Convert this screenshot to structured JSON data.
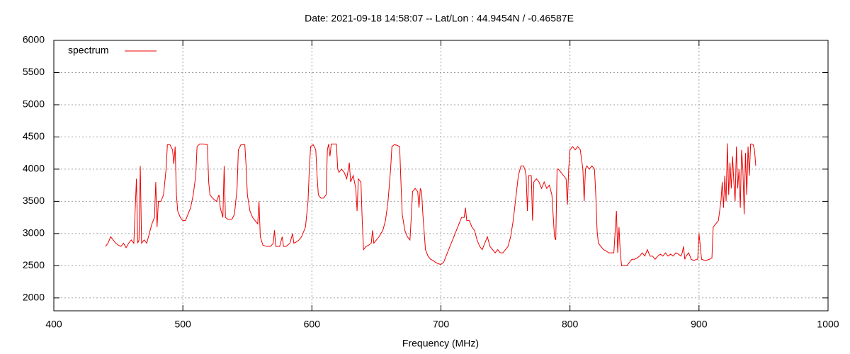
{
  "chart_data": {
    "type": "line",
    "title": "Date: 2021-09-18 14:58:07  --  Lat/Lon : 44.9454N / -0.46587E",
    "x_label": "Frequency (MHz)",
    "xlim": [
      400,
      1000
    ],
    "xticks": [
      400,
      500,
      600,
      700,
      800,
      900,
      1000
    ],
    "ylim": [
      1800,
      6000
    ],
    "yticks": [
      2000,
      2500,
      3000,
      3500,
      4000,
      4500,
      5000,
      5500,
      6000
    ],
    "grid": true,
    "legend": "top-left",
    "x": [
      440,
      442,
      444,
      446,
      448,
      450,
      452,
      454,
      456,
      458,
      460,
      462,
      464,
      465,
      466,
      467,
      468,
      470,
      472,
      474,
      476,
      478,
      479,
      480,
      481,
      483,
      485,
      487,
      488,
      490,
      492,
      493,
      494,
      495,
      496,
      498,
      500,
      502,
      504,
      506,
      508,
      510,
      511,
      513,
      516,
      519,
      520,
      521,
      523,
      526,
      528,
      529,
      531,
      532,
      533,
      535,
      538,
      540,
      542,
      543,
      545,
      548,
      549,
      550,
      552,
      554,
      556,
      558,
      559,
      560,
      562,
      565,
      568,
      570,
      571,
      572,
      575,
      577,
      578,
      580,
      583,
      585,
      586,
      588,
      590,
      592,
      595,
      597,
      598,
      599,
      601,
      603,
      604,
      605,
      607,
      609,
      611,
      612,
      613,
      614,
      615,
      617,
      619,
      620,
      621,
      623,
      625,
      627,
      629,
      630,
      632,
      634,
      635,
      636,
      638,
      639,
      640,
      642,
      644,
      646,
      647,
      648,
      650,
      652,
      655,
      657,
      659,
      661,
      662,
      664,
      666,
      668,
      669,
      670,
      672,
      674,
      676,
      677,
      678,
      680,
      682,
      683,
      684,
      685,
      686,
      688,
      690,
      692,
      694,
      696,
      698,
      700,
      702,
      704,
      706,
      708,
      710,
      712,
      714,
      716,
      718,
      719,
      720,
      722,
      724,
      726,
      728,
      730,
      732,
      734,
      736,
      738,
      740,
      742,
      744,
      746,
      748,
      750,
      752,
      754,
      756,
      758,
      760,
      762,
      764,
      765,
      766,
      767,
      768,
      769,
      770,
      771,
      772,
      774,
      776,
      778,
      780,
      782,
      784,
      786,
      788,
      789,
      790,
      791,
      793,
      795,
      797,
      798,
      799,
      800,
      802,
      804,
      806,
      808,
      810,
      811,
      812,
      813,
      815,
      817,
      819,
      820,
      821,
      822,
      824,
      826,
      828,
      830,
      832,
      834,
      836,
      837,
      838,
      839,
      840,
      842,
      844,
      846,
      848,
      850,
      852,
      854,
      856,
      858,
      860,
      862,
      864,
      866,
      868,
      870,
      872,
      874,
      876,
      878,
      880,
      882,
      884,
      886,
      887,
      888,
      889,
      890,
      892,
      894,
      896,
      898,
      899,
      900,
      902,
      905,
      908,
      910,
      911,
      913,
      915,
      917,
      918,
      919,
      920,
      921,
      922,
      923,
      924,
      925,
      926,
      927,
      928,
      929,
      930,
      931,
      932,
      933,
      934,
      935,
      936,
      937,
      938,
      939,
      940,
      941,
      942,
      943,
      944
    ],
    "series": [
      {
        "name": "spectrum",
        "color": "#ee0000",
        "values": [
          2800,
          2850,
          2950,
          2900,
          2850,
          2820,
          2800,
          2850,
          2780,
          2850,
          2900,
          2850,
          3850,
          2850,
          2900,
          4050,
          2850,
          2900,
          2850,
          3000,
          3150,
          3250,
          3800,
          3100,
          3500,
          3500,
          3600,
          4000,
          4380,
          4380,
          4300,
          4080,
          4350,
          3600,
          3350,
          3250,
          3200,
          3200,
          3300,
          3400,
          3600,
          3900,
          4350,
          4390,
          4390,
          4380,
          3800,
          3600,
          3550,
          3500,
          3600,
          3400,
          3250,
          4050,
          3250,
          3220,
          3220,
          3300,
          3700,
          4300,
          4380,
          4380,
          4050,
          3600,
          3350,
          3250,
          3200,
          3150,
          3500,
          2950,
          2820,
          2800,
          2800,
          2850,
          3050,
          2800,
          2800,
          2950,
          2800,
          2800,
          2850,
          3000,
          2850,
          2870,
          2900,
          2950,
          3100,
          3500,
          4000,
          4350,
          4380,
          4300,
          3900,
          3600,
          3550,
          3550,
          3600,
          4300,
          4390,
          4200,
          4390,
          4390,
          4390,
          4000,
          3950,
          4000,
          3950,
          3850,
          4100,
          3800,
          3900,
          3700,
          3350,
          3850,
          3800,
          3200,
          2750,
          2800,
          2820,
          2850,
          3050,
          2850,
          2900,
          2950,
          3050,
          3200,
          3500,
          4000,
          4350,
          4380,
          4370,
          4350,
          3800,
          3300,
          3050,
          2950,
          2900,
          3250,
          3650,
          3700,
          3650,
          3400,
          3700,
          3650,
          3300,
          2750,
          2650,
          2600,
          2580,
          2550,
          2530,
          2520,
          2550,
          2650,
          2750,
          2850,
          2950,
          3050,
          3150,
          3250,
          3250,
          3400,
          3200,
          3200,
          3100,
          3050,
          2900,
          2800,
          2750,
          2850,
          2950,
          2800,
          2750,
          2700,
          2750,
          2700,
          2700,
          2750,
          2800,
          2950,
          3200,
          3550,
          3900,
          4050,
          4050,
          4000,
          3900,
          3350,
          3900,
          3900,
          3900,
          3200,
          3800,
          3850,
          3800,
          3700,
          3800,
          3700,
          3750,
          3600,
          2950,
          2900,
          4000,
          4000,
          3950,
          3900,
          3850,
          3450,
          4000,
          4300,
          4350,
          4300,
          4350,
          4300,
          4000,
          3500,
          4000,
          4050,
          4000,
          4050,
          4000,
          3600,
          3050,
          2850,
          2800,
          2750,
          2730,
          2700,
          2700,
          2700,
          3350,
          2700,
          3100,
          2700,
          2500,
          2500,
          2500,
          2550,
          2600,
          2600,
          2620,
          2650,
          2700,
          2650,
          2750,
          2650,
          2650,
          2600,
          2650,
          2680,
          2650,
          2700,
          2650,
          2680,
          2650,
          2700,
          2680,
          2650,
          2700,
          2800,
          2600,
          2650,
          2700,
          2600,
          2580,
          2600,
          2600,
          3000,
          2600,
          2580,
          2600,
          2620,
          3100,
          3150,
          3200,
          3500,
          3800,
          3400,
          3900,
          3500,
          4400,
          3600,
          4100,
          3700,
          4200,
          3800,
          3500,
          4350,
          3700,
          4000,
          3400,
          4300,
          4000,
          3300,
          4250,
          3600,
          4350,
          3900,
          4390,
          4390,
          4380,
          4300,
          4050
        ]
      }
    ]
  }
}
